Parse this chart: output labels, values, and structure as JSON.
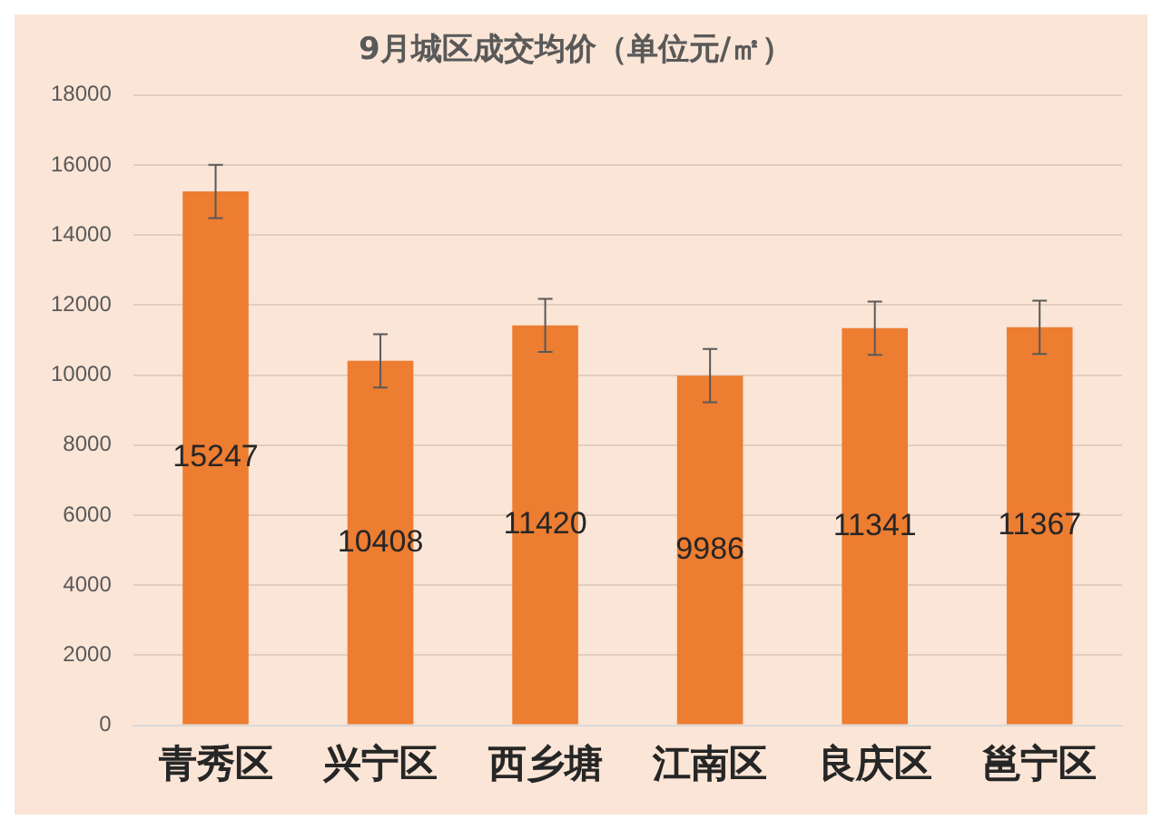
{
  "chart_data": {
    "type": "bar",
    "title": "9月城区成交均价（单位元/㎡）",
    "categories": [
      "青秀区",
      "兴宁区",
      "西乡塘",
      "江南区",
      "良庆区",
      "邕宁区"
    ],
    "values": [
      15247,
      10408,
      11420,
      9986,
      11341,
      11367
    ],
    "errors": [
      760,
      760,
      760,
      760,
      760,
      760
    ],
    "color": "#ed7d31",
    "ylim": [
      0,
      18000
    ],
    "yticks": [
      0,
      2000,
      4000,
      6000,
      8000,
      10000,
      12000,
      14000,
      16000,
      18000
    ],
    "grid": "y",
    "data_labels": true,
    "legend": false
  }
}
